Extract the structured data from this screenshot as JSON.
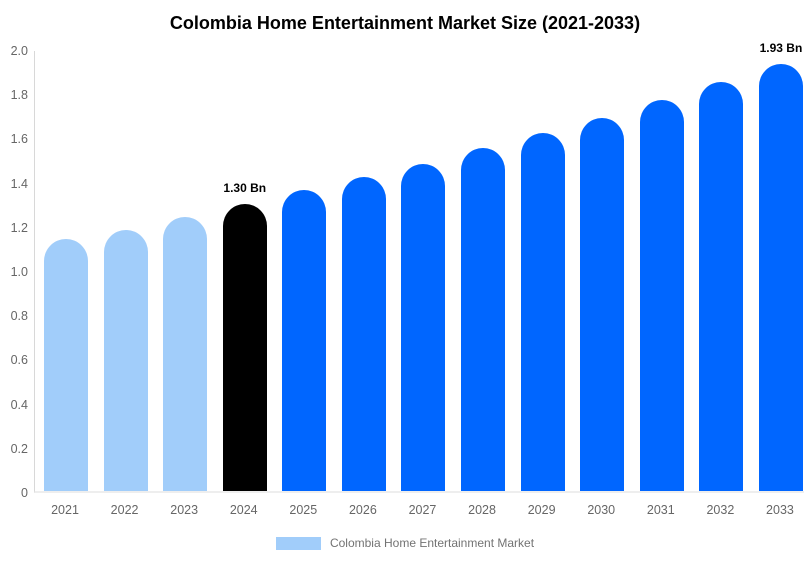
{
  "chart_data": {
    "type": "bar",
    "title": "Colombia Home Entertainment Market Size (2021-2033)",
    "categories": [
      "2021",
      "2022",
      "2023",
      "2024",
      "2025",
      "2026",
      "2027",
      "2028",
      "2029",
      "2030",
      "2031",
      "2032",
      "2033"
    ],
    "values": [
      1.14,
      1.18,
      1.24,
      1.3,
      1.36,
      1.42,
      1.48,
      1.55,
      1.62,
      1.69,
      1.77,
      1.85,
      1.93
    ],
    "unit": "Bn",
    "bar_colors": [
      "#A1CDFA",
      "#A1CDFA",
      "#A1CDFA",
      "#000000",
      "#0066FF",
      "#0066FF",
      "#0066FF",
      "#0066FF",
      "#0066FF",
      "#0066FF",
      "#0066FF",
      "#0066FF",
      "#0066FF"
    ],
    "data_labels": [
      "",
      "",
      "",
      "1.30 Bn",
      "",
      "",
      "",
      "",
      "",
      "",
      "",
      "",
      "1.93 Bn"
    ],
    "xlabel": "",
    "ylabel": "",
    "ylim": [
      0,
      2.0
    ],
    "ytick_values": [
      2.0,
      1.8,
      1.6,
      1.4,
      1.2,
      1.0,
      0.8,
      0.6,
      0.4,
      0.2,
      0
    ],
    "ytick_labels": [
      "2.0",
      "1.8",
      "1.6",
      "1.4",
      "1.2",
      "1.0",
      "0.8",
      "0.6",
      "0.4",
      "0.2",
      "0"
    ],
    "grid": false,
    "legend": {
      "position": "bottom",
      "entries": [
        {
          "label": "Colombia Home Entertainment Market",
          "color": "#A1CDFA"
        }
      ]
    }
  },
  "colors": {
    "historical_bar": "#A1CDFA",
    "highlight_bar": "#000000",
    "forecast_bar": "#0066FF",
    "axis_text": "#666666",
    "axis_line": "#D8D8D8",
    "background": "#FFFFFF"
  }
}
